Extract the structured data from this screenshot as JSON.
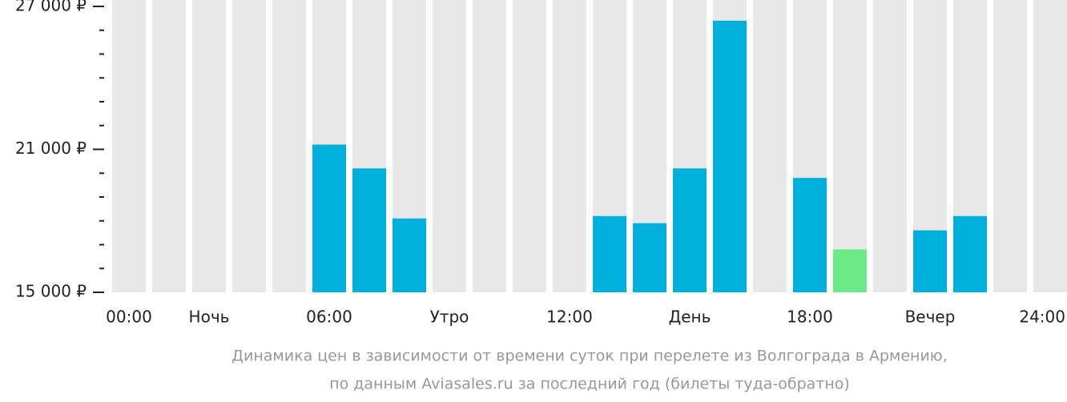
{
  "chart_data": {
    "type": "bar",
    "title_lines": [
      "Динамика цен в зависимости от времени суток при перелете из Волгограда в Армению,",
      "по данным Aviasales.ru за последний год (билеты туда-обратно)"
    ],
    "categories": [
      "00:00",
      null,
      "Ночь",
      null,
      null,
      "06:00",
      null,
      null,
      "Утро",
      null,
      null,
      "12:00",
      null,
      null,
      "День",
      null,
      null,
      "18:00",
      null,
      null,
      "Вечер",
      null,
      null,
      "24:00"
    ],
    "values": [
      null,
      null,
      null,
      null,
      null,
      21200,
      20200,
      18100,
      null,
      null,
      null,
      null,
      18200,
      17900,
      20200,
      26400,
      null,
      19800,
      16800,
      null,
      17600,
      18200,
      null,
      null
    ],
    "color": "#00b0dc",
    "min_color": "#6ce989",
    "slot_color": "#e8e8e8",
    "ylim": [
      15000,
      27000
    ],
    "yticks": [
      {
        "value": 15000,
        "label": "15 000 ₽"
      },
      {
        "value": 21000,
        "label": "21 000 ₽"
      },
      {
        "value": 27000,
        "label": "27 000 ₽"
      }
    ],
    "yminor_ticks": [
      16000,
      17000,
      18000,
      19000,
      20000,
      22000,
      23000,
      24000,
      25000,
      26000
    ]
  }
}
